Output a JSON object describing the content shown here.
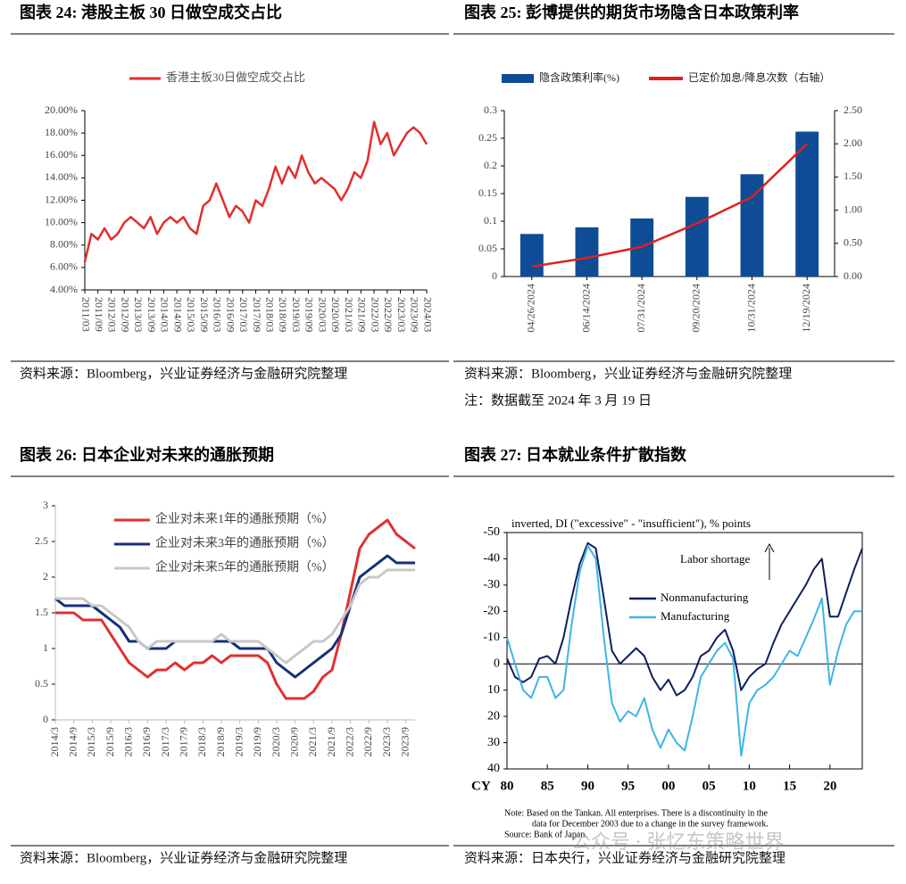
{
  "watermark": "公众号 · 张忆东策略世界",
  "chart_data": [
    {
      "type": "line",
      "title": "图表 24:  港股主板 30 日做空成交占比",
      "source": "资料来源：Bloomberg，兴业证券经济与金融研究院整理",
      "categories": [
        "2011/03",
        null,
        "2011/09",
        null,
        "2012/03",
        null,
        "2012/09",
        null,
        "2013/03",
        null,
        "2013/09",
        null,
        "2014/03",
        null,
        "2014/09",
        null,
        "2015/03",
        null,
        "2015/09",
        null,
        "2016/03",
        null,
        "2016/09",
        null,
        "2017/03",
        null,
        "2017/09",
        null,
        "2018/03",
        null,
        "2018/09",
        null,
        "2019/03",
        null,
        "2019/09",
        null,
        "2020/03",
        null,
        "2020/09",
        null,
        "2021/03",
        null,
        "2021/09",
        null,
        "2022/03",
        null,
        "2022/09",
        null,
        "2023/03",
        null,
        "2023/09",
        null,
        "2024/03"
      ],
      "series": [
        {
          "name": "香港主板30日做空成交占比",
          "color": "#e32d2d",
          "values": [
            6.5,
            9,
            8.5,
            9.5,
            8.5,
            9,
            10,
            10.5,
            10,
            9.5,
            10.5,
            9,
            10,
            10.5,
            10,
            10.5,
            9.5,
            9,
            11.5,
            12,
            13.5,
            12,
            10.5,
            11.5,
            11,
            10,
            12,
            11.5,
            13,
            15,
            13.5,
            15,
            14,
            16,
            14.5,
            13.5,
            14,
            13.5,
            13,
            12,
            13,
            14.5,
            14,
            15.5,
            19,
            17,
            18,
            16,
            17,
            18,
            18.5,
            18,
            17
          ]
        }
      ],
      "ylim": [
        4,
        20
      ],
      "yticks": [
        {
          "value": 4,
          "label": "4.00%"
        },
        {
          "value": 6,
          "label": "6.00%"
        },
        {
          "value": 8,
          "label": "8.00%"
        },
        {
          "value": 10,
          "label": "10.00%"
        },
        {
          "value": 12,
          "label": "12.00%"
        },
        {
          "value": 14,
          "label": "14.00%"
        },
        {
          "value": 16,
          "label": "16.00%"
        },
        {
          "value": 18,
          "label": "18.00%"
        },
        {
          "value": 20,
          "label": "20.00%"
        }
      ],
      "legend": "top"
    },
    {
      "type": "combo",
      "title": "图表 25:  彭博提供的期货市场隐含日本政策利率",
      "source": "资料来源：Bloomberg，兴业证券经济与金融研究院整理",
      "note": "注：数据截至 2024 年 3 月 19 日",
      "categories": [
        "04/26/2024",
        "06/14/2024",
        "07/31/2024",
        "09/20/2024",
        "10/31/2024",
        "12/19/2024"
      ],
      "series": [
        {
          "name": "隐含政策利率(%)",
          "color": "#0f4c96",
          "kind": "bar",
          "values": [
            0.077,
            0.089,
            0.105,
            0.144,
            0.185,
            0.262
          ]
        },
        {
          "name": "已定价加息/降息次数（右轴）",
          "color": "#e02020",
          "kind": "line",
          "axis": "y2",
          "values": [
            0.15,
            0.28,
            0.45,
            0.8,
            1.2,
            2.0
          ]
        }
      ],
      "ylim": [
        0,
        0.3
      ],
      "yticks": [
        0,
        0.05,
        0.1,
        0.15,
        0.2,
        0.25,
        0.3
      ],
      "y2lim": [
        0,
        2.5
      ],
      "y2ticks": [
        {
          "value": 0,
          "label": "0.00"
        },
        {
          "value": 0.5,
          "label": "0.50"
        },
        {
          "value": 1,
          "label": "1.00"
        },
        {
          "value": 1.5,
          "label": "1.50"
        },
        {
          "value": 2,
          "label": "2.00"
        },
        {
          "value": 2.5,
          "label": "2.50"
        }
      ],
      "legend": "top"
    },
    {
      "type": "line",
      "title": "图表 26:  日本企业对未来的通胀预期",
      "source": "资料来源：Bloomberg，兴业证券经济与金融研究院整理",
      "categories": [
        "2014/3",
        null,
        "2014/9",
        null,
        "2015/3",
        null,
        "2015/9",
        null,
        "2016/3",
        null,
        "2016/9",
        null,
        "2017/3",
        null,
        "2017/9",
        null,
        "2018/3",
        null,
        "2018/9",
        null,
        "2019/3",
        null,
        "2019/9",
        null,
        "2020/3",
        null,
        "2020/9",
        null,
        "2021/3",
        null,
        "2021/9",
        null,
        "2022/3",
        null,
        "2022/9",
        null,
        "2023/3",
        null,
        "2023/9",
        null
      ],
      "series": [
        {
          "name": "企业对未来1年的通胀预期（%）",
          "color": "#e03030",
          "values": [
            1.5,
            1.5,
            1.5,
            1.4,
            1.4,
            1.4,
            1.2,
            1.0,
            0.8,
            0.7,
            0.6,
            0.7,
            0.7,
            0.8,
            0.7,
            0.8,
            0.8,
            0.9,
            0.8,
            0.9,
            0.9,
            0.9,
            0.9,
            0.8,
            0.5,
            0.3,
            0.3,
            0.3,
            0.4,
            0.6,
            0.7,
            1.2,
            1.8,
            2.4,
            2.6,
            2.7,
            2.8,
            2.6,
            2.5,
            2.4
          ]
        },
        {
          "name": "企业对未来3年的通胀预期（%）",
          "color": "#14307a",
          "values": [
            1.7,
            1.6,
            1.6,
            1.6,
            1.6,
            1.5,
            1.4,
            1.3,
            1.1,
            1.1,
            1.0,
            1.0,
            1.0,
            1.1,
            1.1,
            1.1,
            1.1,
            1.1,
            1.1,
            1.1,
            1.0,
            1.0,
            1.0,
            1.0,
            0.8,
            0.7,
            0.6,
            0.7,
            0.8,
            0.9,
            1.0,
            1.2,
            1.6,
            2.0,
            2.1,
            2.2,
            2.3,
            2.2,
            2.2,
            2.2
          ]
        },
        {
          "name": "企业对未来5年的通胀预期（%）",
          "color": "#c8c8c8",
          "values": [
            1.7,
            1.7,
            1.7,
            1.7,
            1.6,
            1.6,
            1.5,
            1.4,
            1.3,
            1.1,
            1.0,
            1.1,
            1.1,
            1.1,
            1.1,
            1.1,
            1.1,
            1.1,
            1.2,
            1.1,
            1.1,
            1.1,
            1.1,
            1.0,
            0.9,
            0.8,
            0.9,
            1.0,
            1.1,
            1.1,
            1.2,
            1.4,
            1.6,
            1.9,
            2.0,
            2.0,
            2.1,
            2.1,
            2.1,
            2.1
          ]
        }
      ],
      "ylim": [
        0,
        3
      ],
      "yticks": [
        0,
        0.5,
        1,
        1.5,
        2,
        2.5,
        3
      ],
      "legend": "upper left"
    },
    {
      "type": "line",
      "title": "图表 27:  日本就业条件扩散指数",
      "source": "资料来源：日本央行，兴业证券经济与金融研究院整理",
      "subtitle": "inverted, DI (\"excessive\" - \"insufficient\"), % points",
      "annotation": "Labor shortage",
      "notes": [
        "Note: Based on the Tankan. All enterprises. There is a discontinuity in the",
        "data for December 2003 due to a change in the survey framework.",
        "Source: Bank of Japan."
      ],
      "x": [
        1980,
        1981,
        1982,
        1983,
        1984,
        1985,
        1986,
        1987,
        1988,
        1989,
        1990,
        1991,
        1992,
        1993,
        1994,
        1995,
        1996,
        1997,
        1998,
        1999,
        2000,
        2001,
        2002,
        2003,
        2004,
        2005,
        2006,
        2007,
        2008,
        2009,
        2010,
        2011,
        2012,
        2013,
        2014,
        2015,
        2016,
        2017,
        2018,
        2019,
        2020,
        2021,
        2022,
        2023,
        2024
      ],
      "series": [
        {
          "name": "Nonmanufacturing",
          "color": "#0d1f5c",
          "values": [
            -2,
            5,
            7,
            5,
            -2,
            -3,
            0,
            -10,
            -25,
            -38,
            -46,
            -44,
            -25,
            -5,
            0,
            -3,
            -6,
            -3,
            5,
            10,
            6,
            12,
            10,
            5,
            -3,
            -5,
            -10,
            -13,
            -5,
            10,
            5,
            2,
            0,
            -8,
            -15,
            -20,
            -25,
            -30,
            -36,
            -40,
            -18,
            -18,
            -27,
            -36,
            -44
          ]
        },
        {
          "name": "Manufacturing",
          "color": "#3fb4e6",
          "values": [
            -10,
            0,
            10,
            13,
            5,
            5,
            13,
            10,
            -15,
            -35,
            -45,
            -40,
            -10,
            15,
            22,
            18,
            20,
            13,
            25,
            32,
            25,
            30,
            33,
            20,
            5,
            0,
            -5,
            -8,
            -2,
            35,
            15,
            10,
            8,
            5,
            0,
            -5,
            -3,
            -10,
            -17,
            -25,
            8,
            -5,
            -15,
            -20,
            -20
          ]
        }
      ],
      "x_label": "CY",
      "xlim": [
        1980,
        2024
      ],
      "xticks": [
        {
          "value": 1980,
          "label": "80"
        },
        {
          "value": 1985,
          "label": "85"
        },
        {
          "value": 1990,
          "label": "90"
        },
        {
          "value": 1995,
          "label": "95"
        },
        {
          "value": 2000,
          "label": "00"
        },
        {
          "value": 2005,
          "label": "05"
        },
        {
          "value": 2010,
          "label": "10"
        },
        {
          "value": 2015,
          "label": "15"
        },
        {
          "value": 2020,
          "label": "20"
        }
      ],
      "ylim": [
        40,
        -50
      ],
      "yticks": [
        -50,
        -40,
        -30,
        -20,
        -10,
        0,
        10,
        20,
        30,
        40
      ],
      "zero_line": true
    }
  ]
}
